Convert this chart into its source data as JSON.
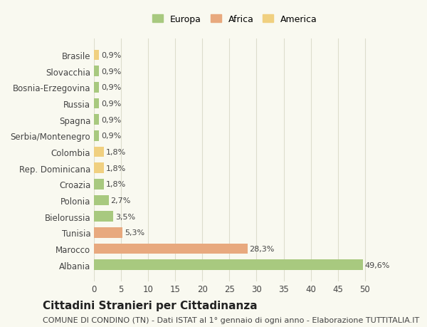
{
  "categories": [
    "Albania",
    "Marocco",
    "Tunisia",
    "Bielorussia",
    "Polonia",
    "Croazia",
    "Rep. Dominicana",
    "Colombia",
    "Serbia/Montenegro",
    "Spagna",
    "Russia",
    "Bosnia-Erzegovina",
    "Slovacchia",
    "Brasile"
  ],
  "values": [
    49.6,
    28.3,
    5.3,
    3.5,
    2.7,
    1.8,
    1.8,
    1.8,
    0.9,
    0.9,
    0.9,
    0.9,
    0.9,
    0.9
  ],
  "labels": [
    "49,6%",
    "28,3%",
    "5,3%",
    "3,5%",
    "2,7%",
    "1,8%",
    "1,8%",
    "1,8%",
    "0,9%",
    "0,9%",
    "0,9%",
    "0,9%",
    "0,9%",
    "0,9%"
  ],
  "colors": [
    "#a8c97f",
    "#e8a97e",
    "#e8a97e",
    "#a8c97f",
    "#a8c97f",
    "#a8c97f",
    "#f0d080",
    "#f0d080",
    "#a8c97f",
    "#a8c97f",
    "#a8c97f",
    "#a8c97f",
    "#a8c97f",
    "#f0d080"
  ],
  "legend_labels": [
    "Europa",
    "Africa",
    "America"
  ],
  "legend_colors": [
    "#a8c97f",
    "#e8a97e",
    "#f0d080"
  ],
  "title": "Cittadini Stranieri per Cittadinanza",
  "subtitle": "COMUNE DI CONDINO (TN) - Dati ISTAT al 1° gennaio di ogni anno - Elaborazione TUTTITALIA.IT",
  "xlim": [
    0,
    52
  ],
  "xticks": [
    0,
    5,
    10,
    15,
    20,
    25,
    30,
    35,
    40,
    45,
    50
  ],
  "background_color": "#f9f9f0",
  "grid_color": "#ddddcc",
  "bar_height": 0.65,
  "title_fontsize": 11,
  "subtitle_fontsize": 8,
  "tick_fontsize": 8.5,
  "label_fontsize": 8
}
